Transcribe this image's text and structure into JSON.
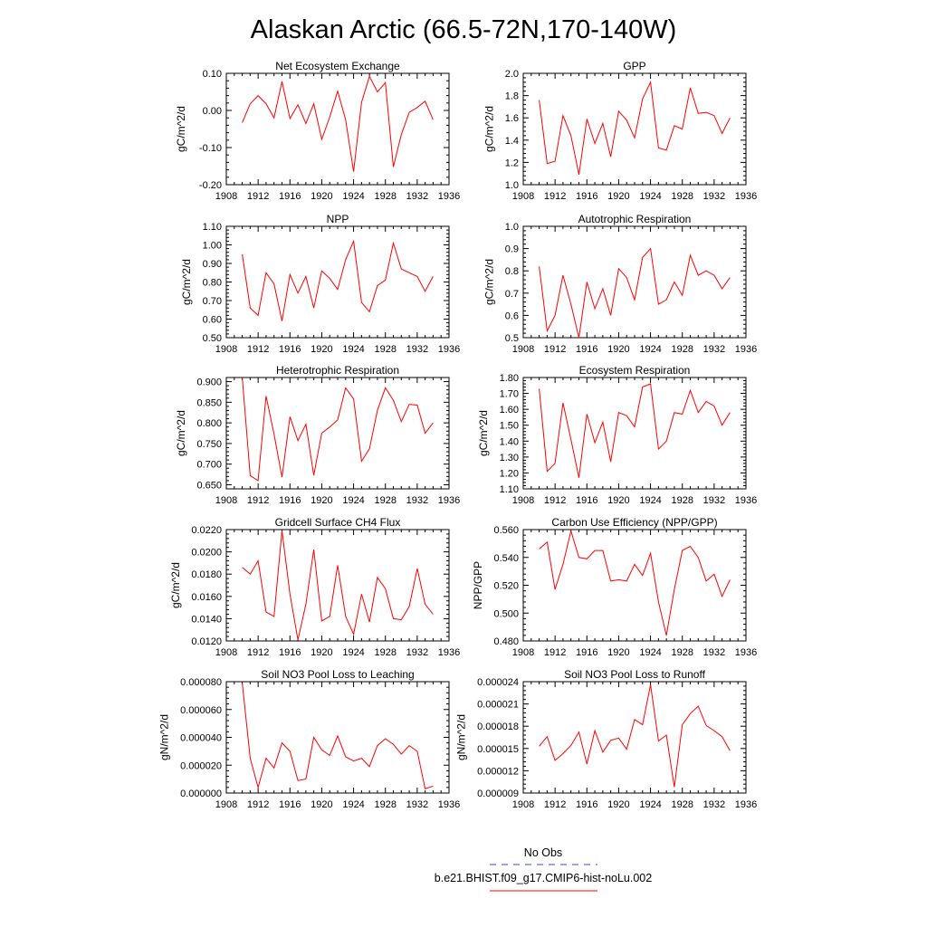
{
  "page_title": "Alaskan Arctic (66.5-72N,170-140W)",
  "legend": {
    "obs_label": "No Obs",
    "obs_color": "#3a44c8",
    "model_label": "b.e21.BHIST.f09_g17.CMIP6-hist-noLu.002",
    "model_color": "#ff0000"
  },
  "chart_data": [
    {
      "type": "line",
      "title": "Net Ecosystem Exchange",
      "ylabel": "gC/m^2/d",
      "xlim": [
        1908,
        1936
      ],
      "ylim": [
        -0.2,
        0.1
      ],
      "x_ticks": [
        "1908",
        "1912",
        "1916",
        "1920",
        "1924",
        "1928",
        "1932",
        "1936"
      ],
      "y_ticks": [
        "-0.20",
        "-0.10",
        "0.00",
        "0.10"
      ],
      "x": [
        1910,
        1911,
        1912,
        1913,
        1914,
        1915,
        1916,
        1917,
        1918,
        1919,
        1920,
        1921,
        1922,
        1923,
        1924,
        1925,
        1926,
        1927,
        1928,
        1929,
        1930,
        1931,
        1932,
        1933,
        1934
      ],
      "values": [
        -0.033,
        0.018,
        0.04,
        0.018,
        -0.02,
        0.078,
        -0.022,
        0.015,
        -0.035,
        0.018,
        -0.078,
        -0.018,
        0.052,
        -0.025,
        -0.165,
        0.022,
        0.092,
        0.05,
        0.075,
        -0.152,
        -0.065,
        -0.005,
        0.008,
        0.025,
        -0.025
      ],
      "color": "#ff0000"
    },
    {
      "type": "line",
      "title": "GPP",
      "ylabel": "gC/m^2/d",
      "xlim": [
        1908,
        1936
      ],
      "ylim": [
        1.0,
        2.0
      ],
      "x_ticks": [
        "1908",
        "1912",
        "1916",
        "1920",
        "1924",
        "1928",
        "1932",
        "1936"
      ],
      "y_ticks": [
        "1.0",
        "1.2",
        "1.4",
        "1.6",
        "1.8",
        "2.0"
      ],
      "x": [
        1910,
        1911,
        1912,
        1913,
        1914,
        1915,
        1916,
        1917,
        1918,
        1919,
        1920,
        1921,
        1922,
        1923,
        1924,
        1925,
        1926,
        1927,
        1928,
        1929,
        1930,
        1931,
        1932,
        1933,
        1934
      ],
      "values": [
        1.76,
        1.19,
        1.21,
        1.62,
        1.44,
        1.09,
        1.59,
        1.37,
        1.55,
        1.25,
        1.66,
        1.58,
        1.42,
        1.77,
        1.92,
        1.33,
        1.31,
        1.53,
        1.5,
        1.87,
        1.64,
        1.65,
        1.62,
        1.46,
        1.6
      ],
      "color": "#ff0000"
    },
    {
      "type": "line",
      "title": "NPP",
      "ylabel": "gC/m^2/d",
      "xlim": [
        1908,
        1936
      ],
      "ylim": [
        0.5,
        1.1
      ],
      "x_ticks": [
        "1908",
        "1912",
        "1916",
        "1920",
        "1924",
        "1928",
        "1932",
        "1936"
      ],
      "y_ticks": [
        "0.50",
        "0.60",
        "0.70",
        "0.80",
        "0.90",
        "1.00",
        "1.10"
      ],
      "x": [
        1910,
        1911,
        1912,
        1913,
        1914,
        1915,
        1916,
        1917,
        1918,
        1919,
        1920,
        1921,
        1922,
        1923,
        1924,
        1925,
        1926,
        1927,
        1928,
        1929,
        1930,
        1931,
        1932,
        1933,
        1934
      ],
      "values": [
        0.95,
        0.66,
        0.62,
        0.85,
        0.79,
        0.59,
        0.84,
        0.74,
        0.83,
        0.66,
        0.86,
        0.82,
        0.76,
        0.92,
        1.02,
        0.69,
        0.64,
        0.78,
        0.81,
        1.01,
        0.87,
        0.85,
        0.83,
        0.75,
        0.83
      ],
      "color": "#ff0000"
    },
    {
      "type": "line",
      "title": "Autotrophic Respiration",
      "ylabel": "gC/m^2/d",
      "xlim": [
        1908,
        1936
      ],
      "ylim": [
        0.5,
        1.0
      ],
      "x_ticks": [
        "1908",
        "1912",
        "1916",
        "1920",
        "1924",
        "1928",
        "1932",
        "1936"
      ],
      "y_ticks": [
        "0.5",
        "0.6",
        "0.7",
        "0.8",
        "0.9",
        "1.0"
      ],
      "x": [
        1910,
        1911,
        1912,
        1913,
        1914,
        1915,
        1916,
        1917,
        1918,
        1919,
        1920,
        1921,
        1922,
        1923,
        1924,
        1925,
        1926,
        1927,
        1928,
        1929,
        1930,
        1931,
        1932,
        1933,
        1934
      ],
      "values": [
        0.82,
        0.53,
        0.6,
        0.78,
        0.65,
        0.5,
        0.75,
        0.63,
        0.72,
        0.6,
        0.81,
        0.77,
        0.67,
        0.86,
        0.9,
        0.65,
        0.67,
        0.75,
        0.69,
        0.87,
        0.78,
        0.8,
        0.78,
        0.72,
        0.77
      ],
      "color": "#ff0000"
    },
    {
      "type": "line",
      "title": "Heterotrophic Respiration",
      "ylabel": "gC/m^2/d",
      "xlim": [
        1908,
        1936
      ],
      "ylim": [
        0.64,
        0.91
      ],
      "x_ticks": [
        "1908",
        "1912",
        "1916",
        "1920",
        "1924",
        "1928",
        "1932",
        "1936"
      ],
      "y_ticks": [
        "0.650",
        "0.700",
        "0.750",
        "0.800",
        "0.850",
        "0.900"
      ],
      "x": [
        1910,
        1911,
        1912,
        1913,
        1914,
        1915,
        1916,
        1917,
        1918,
        1919,
        1920,
        1921,
        1922,
        1923,
        1924,
        1925,
        1926,
        1927,
        1928,
        1929,
        1930,
        1931,
        1932,
        1933,
        1934
      ],
      "values": [
        0.91,
        0.672,
        0.66,
        0.865,
        0.773,
        0.668,
        0.815,
        0.757,
        0.797,
        0.673,
        0.775,
        0.79,
        0.807,
        0.885,
        0.858,
        0.707,
        0.737,
        0.83,
        0.885,
        0.855,
        0.803,
        0.845,
        0.843,
        0.775,
        0.8
      ],
      "color": "#ff0000"
    },
    {
      "type": "line",
      "title": "Ecosystem Respiration",
      "ylabel": "gC/m^2/d",
      "xlim": [
        1908,
        1936
      ],
      "ylim": [
        1.1,
        1.8
      ],
      "x_ticks": [
        "1908",
        "1912",
        "1916",
        "1920",
        "1924",
        "1928",
        "1932",
        "1936"
      ],
      "y_ticks": [
        "1.10",
        "1.20",
        "1.30",
        "1.40",
        "1.50",
        "1.60",
        "1.70",
        "1.80"
      ],
      "x": [
        1910,
        1911,
        1912,
        1913,
        1914,
        1915,
        1916,
        1917,
        1918,
        1919,
        1920,
        1921,
        1922,
        1923,
        1924,
        1925,
        1926,
        1927,
        1928,
        1929,
        1930,
        1931,
        1932,
        1933,
        1934
      ],
      "values": [
        1.73,
        1.21,
        1.26,
        1.64,
        1.41,
        1.17,
        1.57,
        1.39,
        1.52,
        1.27,
        1.58,
        1.56,
        1.49,
        1.74,
        1.76,
        1.35,
        1.4,
        1.58,
        1.57,
        1.72,
        1.58,
        1.65,
        1.62,
        1.5,
        1.58
      ],
      "color": "#ff0000"
    },
    {
      "type": "line",
      "title": "Gridcell Surface CH4 Flux",
      "ylabel": "gC/m^2/d",
      "xlim": [
        1908,
        1936
      ],
      "ylim": [
        0.012,
        0.022
      ],
      "x_ticks": [
        "1908",
        "1912",
        "1916",
        "1920",
        "1924",
        "1928",
        "1932",
        "1936"
      ],
      "y_ticks": [
        "0.0120",
        "0.0140",
        "0.0160",
        "0.0180",
        "0.0200",
        "0.0220"
      ],
      "x": [
        1910,
        1911,
        1912,
        1913,
        1914,
        1915,
        1916,
        1917,
        1918,
        1919,
        1920,
        1921,
        1922,
        1923,
        1924,
        1925,
        1926,
        1927,
        1928,
        1929,
        1930,
        1931,
        1932,
        1933,
        1934
      ],
      "values": [
        0.0186,
        0.018,
        0.0192,
        0.0146,
        0.0142,
        0.0219,
        0.0162,
        0.0121,
        0.0153,
        0.0202,
        0.0138,
        0.0142,
        0.0188,
        0.0142,
        0.0126,
        0.0162,
        0.0137,
        0.0177,
        0.0167,
        0.014,
        0.0139,
        0.0151,
        0.0185,
        0.0153,
        0.0144
      ],
      "color": "#ff0000"
    },
    {
      "type": "line",
      "title": "Carbon Use Efficiency (NPP/GPP)",
      "ylabel": "NPP/GPP",
      "xlim": [
        1908,
        1936
      ],
      "ylim": [
        0.48,
        0.56
      ],
      "x_ticks": [
        "1908",
        "1912",
        "1916",
        "1920",
        "1924",
        "1928",
        "1932",
        "1936"
      ],
      "y_ticks": [
        "0.480",
        "0.500",
        "0.520",
        "0.540",
        "0.560"
      ],
      "x": [
        1910,
        1911,
        1912,
        1913,
        1914,
        1915,
        1916,
        1917,
        1918,
        1919,
        1920,
        1921,
        1922,
        1923,
        1924,
        1925,
        1926,
        1927,
        1928,
        1929,
        1930,
        1931,
        1932,
        1933,
        1934
      ],
      "values": [
        0.546,
        0.551,
        0.517,
        0.535,
        0.559,
        0.54,
        0.539,
        0.545,
        0.545,
        0.523,
        0.524,
        0.523,
        0.535,
        0.527,
        0.543,
        0.508,
        0.484,
        0.517,
        0.545,
        0.548,
        0.54,
        0.523,
        0.528,
        0.512,
        0.524
      ],
      "color": "#ff0000"
    },
    {
      "type": "line",
      "title": "Soil NO3 Pool Loss to Leaching",
      "ylabel": "gN/m^2/d",
      "xlim": [
        1908,
        1936
      ],
      "ylim": [
        0.0,
        8e-05
      ],
      "x_ticks": [
        "1908",
        "1912",
        "1916",
        "1920",
        "1924",
        "1928",
        "1932",
        "1936"
      ],
      "y_ticks": [
        "0.000000",
        "0.000020",
        "0.000040",
        "0.000060",
        "0.000080"
      ],
      "x": [
        1910,
        1911,
        1912,
        1913,
        1914,
        1915,
        1916,
        1917,
        1918,
        1919,
        1920,
        1921,
        1922,
        1923,
        1924,
        1925,
        1926,
        1927,
        1928,
        1929,
        1930,
        1931,
        1932,
        1933,
        1934
      ],
      "values": [
        7.9e-05,
        2.5e-05,
        4e-06,
        2.5e-05,
        1.8e-05,
        3.6e-05,
        3e-05,
        9e-06,
        1e-05,
        4e-05,
        3.1e-05,
        2.7e-05,
        4.1e-05,
        2.6e-05,
        2.3e-05,
        2.5e-05,
        1.9e-05,
        3.4e-05,
        3.9e-05,
        3.5e-05,
        2.8e-05,
        3.4e-05,
        3e-05,
        3e-06,
        5e-06
      ],
      "color": "#ff0000"
    },
    {
      "type": "line",
      "title": "Soil NO3 Pool Loss to Runoff",
      "ylabel": "gN/m^2/d",
      "xlim": [
        1908,
        1936
      ],
      "ylim": [
        9e-06,
        2.4e-05
      ],
      "x_ticks": [
        "1908",
        "1912",
        "1916",
        "1920",
        "1924",
        "1928",
        "1932",
        "1936"
      ],
      "y_ticks": [
        "0.000009",
        "0.000012",
        "0.000015",
        "0.000018",
        "0.000021",
        "0.000024"
      ],
      "x": [
        1910,
        1911,
        1912,
        1913,
        1914,
        1915,
        1916,
        1917,
        1918,
        1919,
        1920,
        1921,
        1922,
        1923,
        1924,
        1925,
        1926,
        1927,
        1928,
        1929,
        1930,
        1931,
        1932,
        1933,
        1934
      ],
      "values": [
        1.53e-05,
        1.66e-05,
        1.34e-05,
        1.43e-05,
        1.54e-05,
        1.72e-05,
        1.29e-05,
        1.74e-05,
        1.45e-05,
        1.61e-05,
        1.64e-05,
        1.49e-05,
        1.89e-05,
        1.82e-05,
        2.36e-05,
        1.6e-05,
        1.68e-05,
        9.8e-06,
        1.82e-05,
        1.97e-05,
        2.07e-05,
        1.81e-05,
        1.74e-05,
        1.66e-05,
        1.47e-05
      ],
      "color": "#ff0000"
    }
  ]
}
